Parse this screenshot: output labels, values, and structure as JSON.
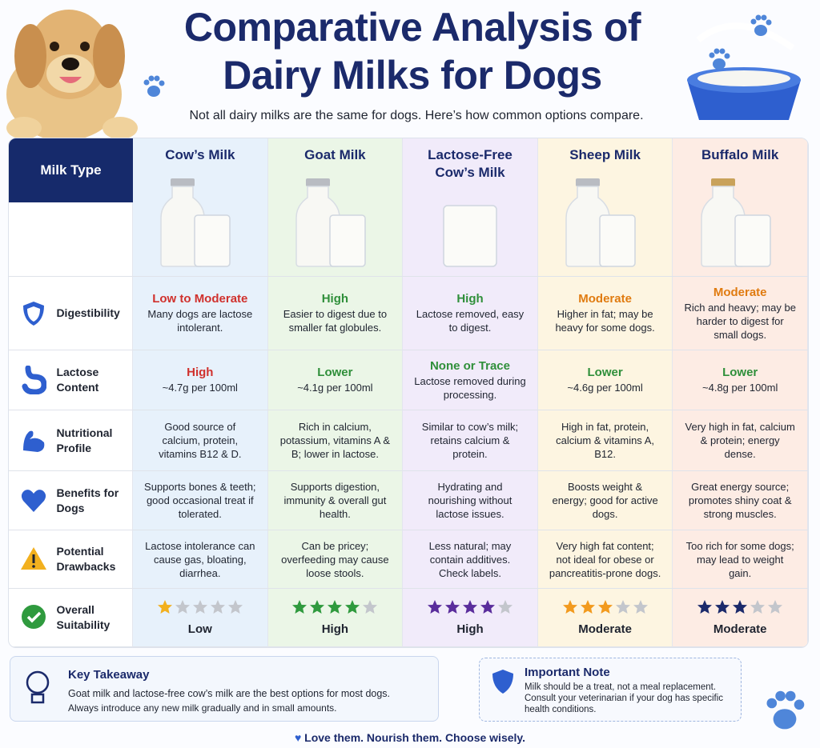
{
  "header": {
    "title": "Comparative Analysis of Dairy Milks for Dogs",
    "subtitle": "Not all dairy milks are the same for dogs. Here’s how common options compare."
  },
  "table": {
    "corner": "Milk Type",
    "star_scale": 5,
    "columns": [
      "Cow’s Milk",
      "Goat Milk",
      "Lactose-Free Cow’s Milk",
      "Sheep Milk",
      "Buffalo Milk"
    ],
    "rows": [
      {
        "label": "Digestibility",
        "cells": [
          {
            "rating": "Low to Moderate",
            "text": "Many dogs are lactose intolerant."
          },
          {
            "rating": "High",
            "text": "Easier to digest due to smaller fat globules."
          },
          {
            "rating": "High",
            "text": "Lactose removed, easy to digest."
          },
          {
            "rating": "Moderate",
            "text": "Higher in fat; may be heavy for some dogs."
          },
          {
            "rating": "Moderate",
            "text": "Rich and heavy; may be harder to digest for small dogs."
          }
        ]
      },
      {
        "label": "Lactose Content",
        "cells": [
          {
            "rating": "High",
            "text": "~4.7g per 100ml"
          },
          {
            "rating": "Lower",
            "text": "~4.1g per 100ml"
          },
          {
            "rating": "None or Trace",
            "text": "Lactose removed during processing."
          },
          {
            "rating": "Lower",
            "text": "~4.6g per 100ml"
          },
          {
            "rating": "Lower",
            "text": "~4.8g per 100ml"
          }
        ]
      },
      {
        "label": "Nutritional Profile",
        "cells": [
          {
            "text": "Good source of calcium, protein, vitamins B12 & D."
          },
          {
            "text": "Rich in calcium, potassium, vitamins A & B; lower in lactose."
          },
          {
            "text": "Similar to cow’s milk; retains calcium & protein."
          },
          {
            "text": "High in fat, protein, calcium & vitamins A, B12."
          },
          {
            "text": "Very high in fat, calcium & protein; energy dense."
          }
        ]
      },
      {
        "label": "Benefits for Dogs",
        "cells": [
          {
            "text": "Supports bones & teeth; good occasional treat if tolerated."
          },
          {
            "text": "Supports digestion, immunity & overall gut health."
          },
          {
            "text": "Hydrating and nourishing without lactose issues."
          },
          {
            "text": "Boosts weight & energy; good for active dogs."
          },
          {
            "text": "Great energy source; promotes shiny coat & strong muscles."
          }
        ]
      },
      {
        "label": "Potential Drawbacks",
        "cells": [
          {
            "text": "Lactose intolerance can cause gas, bloating, diarrhea."
          },
          {
            "text": "Can be pricey; overfeeding may cause loose stools."
          },
          {
            "text": "Less natural; may contain additives. Check labels."
          },
          {
            "text": "Very high fat content; not ideal for obese or pancreatitis-prone dogs."
          },
          {
            "text": "Too rich for some dogs; may lead to weight gain."
          }
        ]
      },
      {
        "label": "Overall Suitability",
        "cells": [
          {
            "stars": 1,
            "rating": "Low"
          },
          {
            "stars": 4,
            "rating": "High"
          },
          {
            "stars": 4,
            "rating": "High"
          },
          {
            "stars": 3,
            "rating": "Moderate"
          },
          {
            "stars": 3,
            "rating": "Moderate"
          }
        ]
      }
    ]
  },
  "takeaway": {
    "title": "Key Takeaway",
    "lines": [
      "Goat milk and lactose-free cow’s milk are the best options for most dogs.",
      "Always introduce any new milk gradually and in small amounts."
    ]
  },
  "note": {
    "title": "Important Note",
    "text": "Milk should be a treat, not a meal replacement. Consult your veterinarian if your dog has specific health conditions."
  },
  "footer": "Love them. Nourish them. Choose wisely."
}
